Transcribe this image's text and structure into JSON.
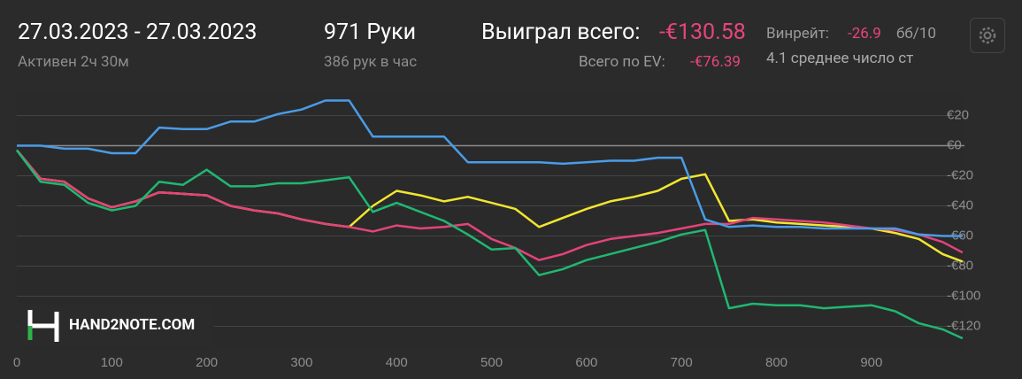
{
  "header": {
    "date_range": "27.03.2023 - 27.03.2023",
    "active": "Активен 2ч 30м",
    "hands": "971 Руки",
    "hands_per_hour": "386 рук в час",
    "won_label": "Выиграл всего:",
    "won_value": "-€130.58",
    "ev_label": "Всего по EV:",
    "ev_value": "-€76.39",
    "winrate_label": "Винрейт:",
    "winrate_value": "-26.9",
    "winrate_unit": "бб/10",
    "avg_players": "4.1 среднее число ст"
  },
  "watermark": "HAND2NOTE.COM",
  "chart_data": {
    "type": "line",
    "x": [
      0,
      25,
      50,
      75,
      100,
      125,
      150,
      175,
      200,
      225,
      250,
      275,
      300,
      325,
      350,
      375,
      400,
      425,
      450,
      475,
      500,
      525,
      550,
      575,
      600,
      625,
      650,
      675,
      700,
      725,
      750,
      775,
      800,
      825,
      850,
      875,
      900,
      925,
      950,
      975,
      996
    ],
    "series": [
      {
        "color": "#f2e630",
        "values": [
          -3,
          -22,
          -24,
          -35,
          -41,
          -37,
          -31,
          -32,
          -33,
          -40,
          -43,
          -45,
          -49,
          -52,
          -54,
          -40,
          -30,
          -33,
          -37,
          -34,
          -38,
          -42,
          -54,
          -48,
          -42,
          -37,
          -34,
          -30,
          -22,
          -19,
          -50,
          -49,
          -51,
          -52,
          -53,
          -54,
          -55,
          -58,
          -62,
          -72,
          -77
        ]
      },
      {
        "color": "#e4437a",
        "values": [
          -3,
          -22,
          -24,
          -35,
          -41,
          -37,
          -31,
          -32,
          -33,
          -40,
          -43,
          -45,
          -49,
          -52,
          -54,
          -57,
          -53,
          -55,
          -54,
          -52,
          -62,
          -68,
          -76,
          -72,
          -66,
          -62,
          -60,
          -58,
          -55,
          -52,
          -52,
          -48,
          -49,
          -50,
          -51,
          -53,
          -55,
          -56,
          -59,
          -64,
          -71
        ]
      },
      {
        "color": "#1fb872",
        "values": [
          -3,
          -24,
          -26,
          -38,
          -43,
          -40,
          -24,
          -26,
          -16,
          -27,
          -27,
          -25,
          -25,
          -23,
          -21,
          -44,
          -38,
          -44,
          -50,
          -59,
          -69,
          -68,
          -86,
          -82,
          -76,
          -72,
          -68,
          -64,
          -59,
          -56,
          -108,
          -105,
          -106,
          -106,
          -108,
          -107,
          -106,
          -110,
          -118,
          -122,
          -128
        ]
      },
      {
        "color": "#4a9ce8",
        "values": [
          0,
          0,
          -2,
          -2,
          -5,
          -5,
          12,
          11,
          11,
          16,
          16,
          21,
          24,
          30,
          30,
          6,
          6,
          6,
          6,
          -11,
          -11,
          -11,
          -11,
          -12,
          -11,
          -10,
          -10,
          -8,
          -8,
          -49,
          -54,
          -53,
          -54,
          -54,
          -55,
          -55,
          -55,
          -55,
          -59,
          -60,
          -60
        ]
      }
    ],
    "xlim": [
      0,
      998
    ],
    "ylim": [
      -135,
      35
    ],
    "xticks": [
      0,
      100,
      200,
      300,
      400,
      500,
      600,
      700,
      800,
      900
    ],
    "yticks": [
      {
        "value": 20,
        "label": "€20"
      },
      {
        "value": 0,
        "label": "€0"
      },
      {
        "value": -20,
        "label": "-€20"
      },
      {
        "value": -40,
        "label": "-€40"
      },
      {
        "value": -60,
        "label": "-€60"
      },
      {
        "value": -80,
        "label": "-€80"
      },
      {
        "value": -100,
        "label": "-€100"
      },
      {
        "value": -120,
        "label": "-€120"
      }
    ],
    "grid": true
  }
}
